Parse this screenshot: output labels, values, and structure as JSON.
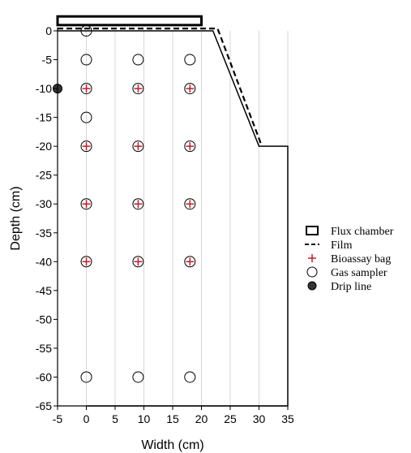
{
  "chart_data": {
    "type": "scatter",
    "xlabel": "Width (cm)",
    "ylabel": "Depth (cm)",
    "xlim": [
      -5,
      35
    ],
    "ylim": [
      -65,
      0
    ],
    "xticks": [
      -5,
      0,
      5,
      10,
      15,
      20,
      25,
      30,
      35
    ],
    "yticks": [
      0,
      -5,
      -10,
      -15,
      -20,
      -25,
      -30,
      -35,
      -40,
      -45,
      -50,
      -55,
      -60,
      -65
    ],
    "soil_profile": [
      [
        -5,
        0
      ],
      [
        22,
        0
      ],
      [
        30,
        -20
      ],
      [
        35,
        -20
      ],
      [
        35,
        -65
      ],
      [
        0,
        -65
      ]
    ],
    "flux_chamber": {
      "x": [
        -5,
        20
      ],
      "y": [
        1,
        2.5
      ]
    },
    "film": [
      [
        -5,
        0.4
      ],
      [
        22.8,
        0.4
      ],
      [
        30.5,
        -20
      ]
    ],
    "series": [
      {
        "name": "Gas sampler",
        "marker": "open-circle",
        "points": [
          [
            0,
            0
          ],
          [
            0,
            -5
          ],
          [
            9,
            -5
          ],
          [
            18,
            -5
          ],
          [
            0,
            -10
          ],
          [
            9,
            -10
          ],
          [
            18,
            -10
          ],
          [
            0,
            -15
          ],
          [
            0,
            -20
          ],
          [
            9,
            -20
          ],
          [
            18,
            -20
          ],
          [
            0,
            -30
          ],
          [
            9,
            -30
          ],
          [
            18,
            -30
          ],
          [
            0,
            -40
          ],
          [
            9,
            -40
          ],
          [
            18,
            -40
          ],
          [
            0,
            -60
          ],
          [
            9,
            -60
          ],
          [
            18,
            -60
          ]
        ]
      },
      {
        "name": "Bioassay bag",
        "marker": "plus",
        "points": [
          [
            0,
            -10
          ],
          [
            9,
            -10
          ],
          [
            18,
            -10
          ],
          [
            0,
            -20
          ],
          [
            9,
            -20
          ],
          [
            18,
            -20
          ],
          [
            0,
            -30
          ],
          [
            9,
            -30
          ],
          [
            18,
            -30
          ],
          [
            0,
            -40
          ],
          [
            9,
            -40
          ],
          [
            18,
            -40
          ]
        ]
      },
      {
        "name": "Drip line",
        "marker": "filled-circle",
        "points": [
          [
            -5,
            -10
          ]
        ]
      }
    ],
    "legend": {
      "position": "right",
      "entries": [
        "Flux chamber",
        "Film",
        "Bioassay bag",
        "Gas sampler",
        "Drip line"
      ]
    },
    "colors": {
      "bioassay": "#c0202a",
      "drip": "#333333",
      "line": "#000000"
    }
  }
}
